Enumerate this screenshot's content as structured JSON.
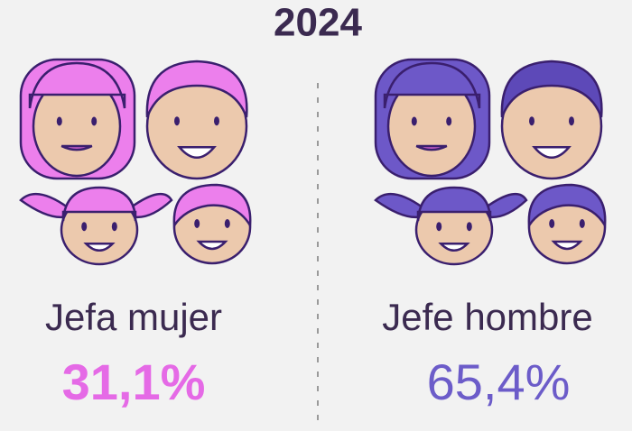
{
  "title": "2024",
  "panels": [
    {
      "label": "Jefa mujer",
      "value": "31,1%"
    },
    {
      "label": "Jefe hombre",
      "value": "65,4%"
    }
  ]
}
